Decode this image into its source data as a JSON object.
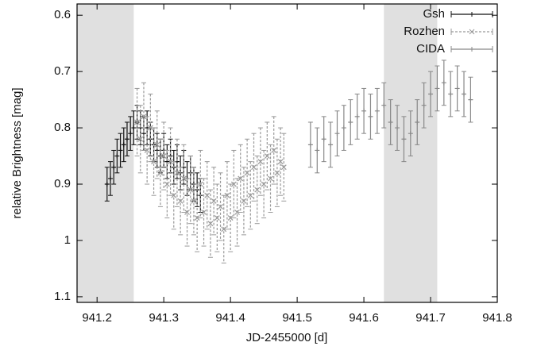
{
  "chart_data": {
    "type": "scatter",
    "x_label": "JD-2455000 [d]",
    "y_label": "relative Brightness [mag]",
    "xlim": [
      941.17,
      941.8
    ],
    "ylim": [
      0.58,
      1.11
    ],
    "y_inverted": true,
    "xticks": [
      941.2,
      941.3,
      941.4,
      941.5,
      941.6,
      941.7,
      941.8
    ],
    "yticks": [
      0.6,
      0.7,
      0.8,
      0.9,
      1,
      1.1
    ],
    "shaded_regions": [
      [
        941.17,
        941.255
      ],
      [
        941.63,
        941.71
      ]
    ],
    "shade_color": "#e0e0e0",
    "legend_position": "upper right",
    "series": [
      {
        "name": "Gsh",
        "color": "#111111",
        "marker": "plus",
        "dashed": false,
        "x": [
          941.215,
          941.22,
          941.225,
          941.23,
          941.235,
          941.24,
          941.245,
          941.25,
          941.255,
          941.26,
          941.265,
          941.27,
          941.275,
          941.28,
          941.285,
          941.29,
          941.295,
          941.3,
          941.305,
          941.31,
          941.315,
          941.32,
          941.325,
          941.33,
          941.335,
          941.34,
          941.345,
          941.35,
          941.355
        ],
        "values": [
          0.9,
          0.89,
          0.87,
          0.85,
          0.84,
          0.83,
          0.82,
          0.81,
          0.8,
          0.79,
          0.8,
          0.81,
          0.8,
          0.82,
          0.83,
          0.84,
          0.85,
          0.84,
          0.86,
          0.85,
          0.87,
          0.86,
          0.88,
          0.87,
          0.89,
          0.88,
          0.9,
          0.91,
          0.92
        ],
        "errors": [
          0.03,
          0.03,
          0.03,
          0.03,
          0.03,
          0.03,
          0.03,
          0.03,
          0.03,
          0.03,
          0.03,
          0.03,
          0.03,
          0.03,
          0.03,
          0.03,
          0.03,
          0.03,
          0.03,
          0.03,
          0.03,
          0.03,
          0.03,
          0.03,
          0.03,
          0.03,
          0.03,
          0.03,
          0.03
        ]
      },
      {
        "name": "Rozhen",
        "color": "#999999",
        "marker": "cross",
        "dashed": true,
        "x": [
          941.26,
          941.265,
          941.27,
          941.275,
          941.28,
          941.285,
          941.29,
          941.295,
          941.3,
          941.305,
          941.31,
          941.315,
          941.32,
          941.325,
          941.33,
          941.335,
          941.34,
          941.345,
          941.35,
          941.355,
          941.36,
          941.365,
          941.37,
          941.375,
          941.38,
          941.385,
          941.39,
          941.395,
          941.4,
          941.405,
          941.41,
          941.415,
          941.42,
          941.425,
          941.43,
          941.435,
          941.44,
          941.445,
          941.45,
          941.455,
          941.46,
          941.465,
          941.47,
          941.475,
          941.48
        ],
        "values": [
          0.79,
          0.82,
          0.78,
          0.84,
          0.8,
          0.86,
          0.83,
          0.88,
          0.85,
          0.9,
          0.86,
          0.92,
          0.88,
          0.93,
          0.89,
          0.95,
          0.91,
          0.93,
          0.96,
          0.9,
          0.95,
          0.92,
          0.97,
          0.93,
          0.96,
          0.94,
          0.98,
          0.92,
          0.96,
          0.9,
          0.95,
          0.89,
          0.93,
          0.88,
          0.92,
          0.87,
          0.91,
          0.86,
          0.9,
          0.85,
          0.89,
          0.84,
          0.88,
          0.86,
          0.87
        ],
        "errors": [
          0.06,
          0.06,
          0.06,
          0.06,
          0.06,
          0.06,
          0.06,
          0.06,
          0.06,
          0.06,
          0.06,
          0.06,
          0.06,
          0.06,
          0.06,
          0.06,
          0.06,
          0.06,
          0.06,
          0.06,
          0.06,
          0.06,
          0.06,
          0.06,
          0.06,
          0.06,
          0.06,
          0.06,
          0.06,
          0.06,
          0.06,
          0.06,
          0.06,
          0.06,
          0.06,
          0.06,
          0.06,
          0.06,
          0.06,
          0.06,
          0.06,
          0.06,
          0.06,
          0.06,
          0.06
        ]
      },
      {
        "name": "CIDA",
        "color": "#888888",
        "marker": "plus",
        "dashed": false,
        "x": [
          941.52,
          941.53,
          941.54,
          941.55,
          941.56,
          941.57,
          941.58,
          941.59,
          941.6,
          941.61,
          941.62,
          941.63,
          941.64,
          941.65,
          941.66,
          941.67,
          941.68,
          941.69,
          941.7,
          941.71,
          941.72,
          941.73,
          941.74,
          941.75,
          941.76
        ],
        "values": [
          0.83,
          0.84,
          0.82,
          0.83,
          0.81,
          0.8,
          0.79,
          0.78,
          0.77,
          0.78,
          0.77,
          0.76,
          0.79,
          0.8,
          0.82,
          0.81,
          0.79,
          0.76,
          0.74,
          0.73,
          0.72,
          0.74,
          0.73,
          0.74,
          0.75
        ],
        "errors": [
          0.04,
          0.04,
          0.04,
          0.04,
          0.04,
          0.04,
          0.04,
          0.04,
          0.04,
          0.04,
          0.04,
          0.04,
          0.04,
          0.04,
          0.04,
          0.04,
          0.04,
          0.04,
          0.04,
          0.04,
          0.04,
          0.04,
          0.04,
          0.04,
          0.04
        ]
      }
    ]
  }
}
